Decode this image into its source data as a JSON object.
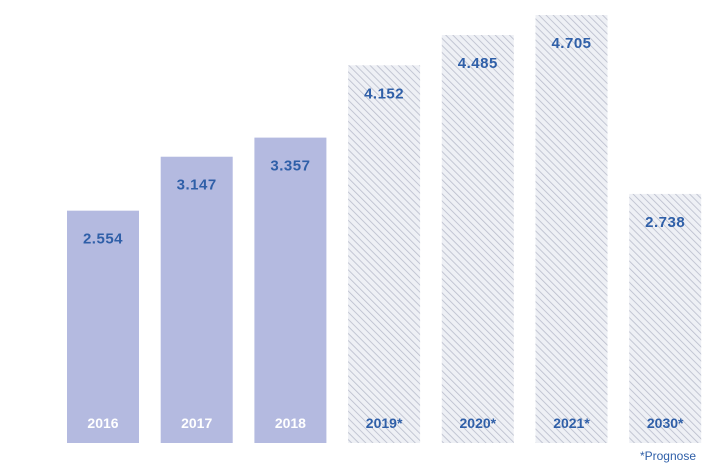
{
  "footnote": "*Prognose",
  "colors": {
    "actual_fill": "#b4bae0",
    "forecast_fill": "#eef0f5",
    "forecast_hatch": "#b8bccb",
    "value_label": "#2f5fa8",
    "year_label": "#ffffff",
    "forecast_year_label": "#2f5fa8"
  },
  "chart_data": {
    "type": "bar",
    "title": "",
    "xlabel": "",
    "ylabel": "",
    "ylim": [
      0,
      4.705
    ],
    "grid": false,
    "legend": "none",
    "categories": [
      "2016",
      "2017",
      "2018",
      "2019*",
      "2020*",
      "2021*",
      "2030*"
    ],
    "values": [
      2.554,
      3.147,
      3.357,
      4.152,
      4.485,
      4.705,
      2.738
    ],
    "value_labels": [
      "2.554",
      "3.147",
      "3.357",
      "4.152",
      "4.485",
      "4.705",
      "2.738"
    ],
    "forecast": [
      false,
      false,
      false,
      true,
      true,
      true,
      true
    ]
  }
}
